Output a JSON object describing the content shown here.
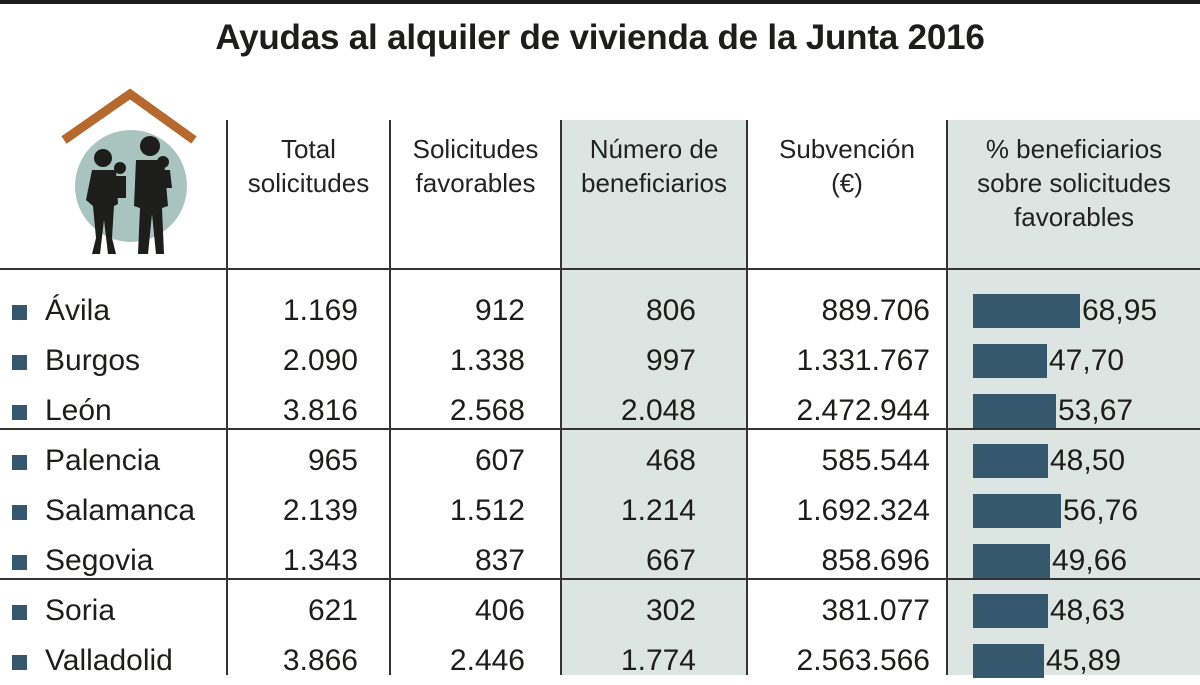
{
  "title": "Ayudas al alquiler de vivienda de la Junta 2016",
  "icon": "house-family-icon",
  "colors": {
    "bar": "#35586f",
    "shade": "#dce5e1",
    "circle": "#a9c4bf",
    "roof": "#b5692f"
  },
  "headers": {
    "total": [
      "Total",
      "solicitudes"
    ],
    "favorables": [
      "Solicitudes",
      "favorables"
    ],
    "beneficiarios": [
      "Número de",
      "beneficiarios"
    ],
    "subvencion": [
      "Subvención",
      "(€)"
    ],
    "porcentaje": [
      "% beneficiarios",
      "sobre solicitudes",
      "favorables"
    ]
  },
  "chart_data": {
    "type": "table",
    "title": "Ayudas al alquiler de vivienda de la Junta 2016",
    "columns": [
      "Total solicitudes",
      "Solicitudes favorables",
      "Número de beneficiarios",
      "Subvención (€)",
      "% beneficiarios sobre solicitudes favorables"
    ],
    "rows": [
      {
        "provincia": "Ávila",
        "total": "1.169",
        "favorables": "912",
        "beneficiarios": "806",
        "subvencion": "889.706",
        "porcentaje": "68,95",
        "pct_value": 68.95
      },
      {
        "provincia": "Burgos",
        "total": "2.090",
        "favorables": "1.338",
        "beneficiarios": "997",
        "subvencion": "1.331.767",
        "porcentaje": "47,70",
        "pct_value": 47.7
      },
      {
        "provincia": "León",
        "total": "3.816",
        "favorables": "2.568",
        "beneficiarios": "2.048",
        "subvencion": "2.472.944",
        "porcentaje": "53,67",
        "pct_value": 53.67
      },
      {
        "provincia": "Palencia",
        "total": "965",
        "favorables": "607",
        "beneficiarios": "468",
        "subvencion": "585.544",
        "porcentaje": "48,50",
        "pct_value": 48.5
      },
      {
        "provincia": "Salamanca",
        "total": "2.139",
        "favorables": "1.512",
        "beneficiarios": "1.214",
        "subvencion": "1.692.324",
        "porcentaje": "56,76",
        "pct_value": 56.76
      },
      {
        "provincia": "Segovia",
        "total": "1.343",
        "favorables": "837",
        "beneficiarios": "667",
        "subvencion": "858.696",
        "porcentaje": "49,66",
        "pct_value": 49.66
      },
      {
        "provincia": "Soria",
        "total": "621",
        "favorables": "406",
        "beneficiarios": "302",
        "subvencion": "381.077",
        "porcentaje": "48,63",
        "pct_value": 48.63
      },
      {
        "provincia": "Valladolid",
        "total": "3.866",
        "favorables": "2.446",
        "beneficiarios": "1.774",
        "subvencion": "2.563.566",
        "porcentaje": "45,89",
        "pct_value": 45.89
      }
    ]
  }
}
